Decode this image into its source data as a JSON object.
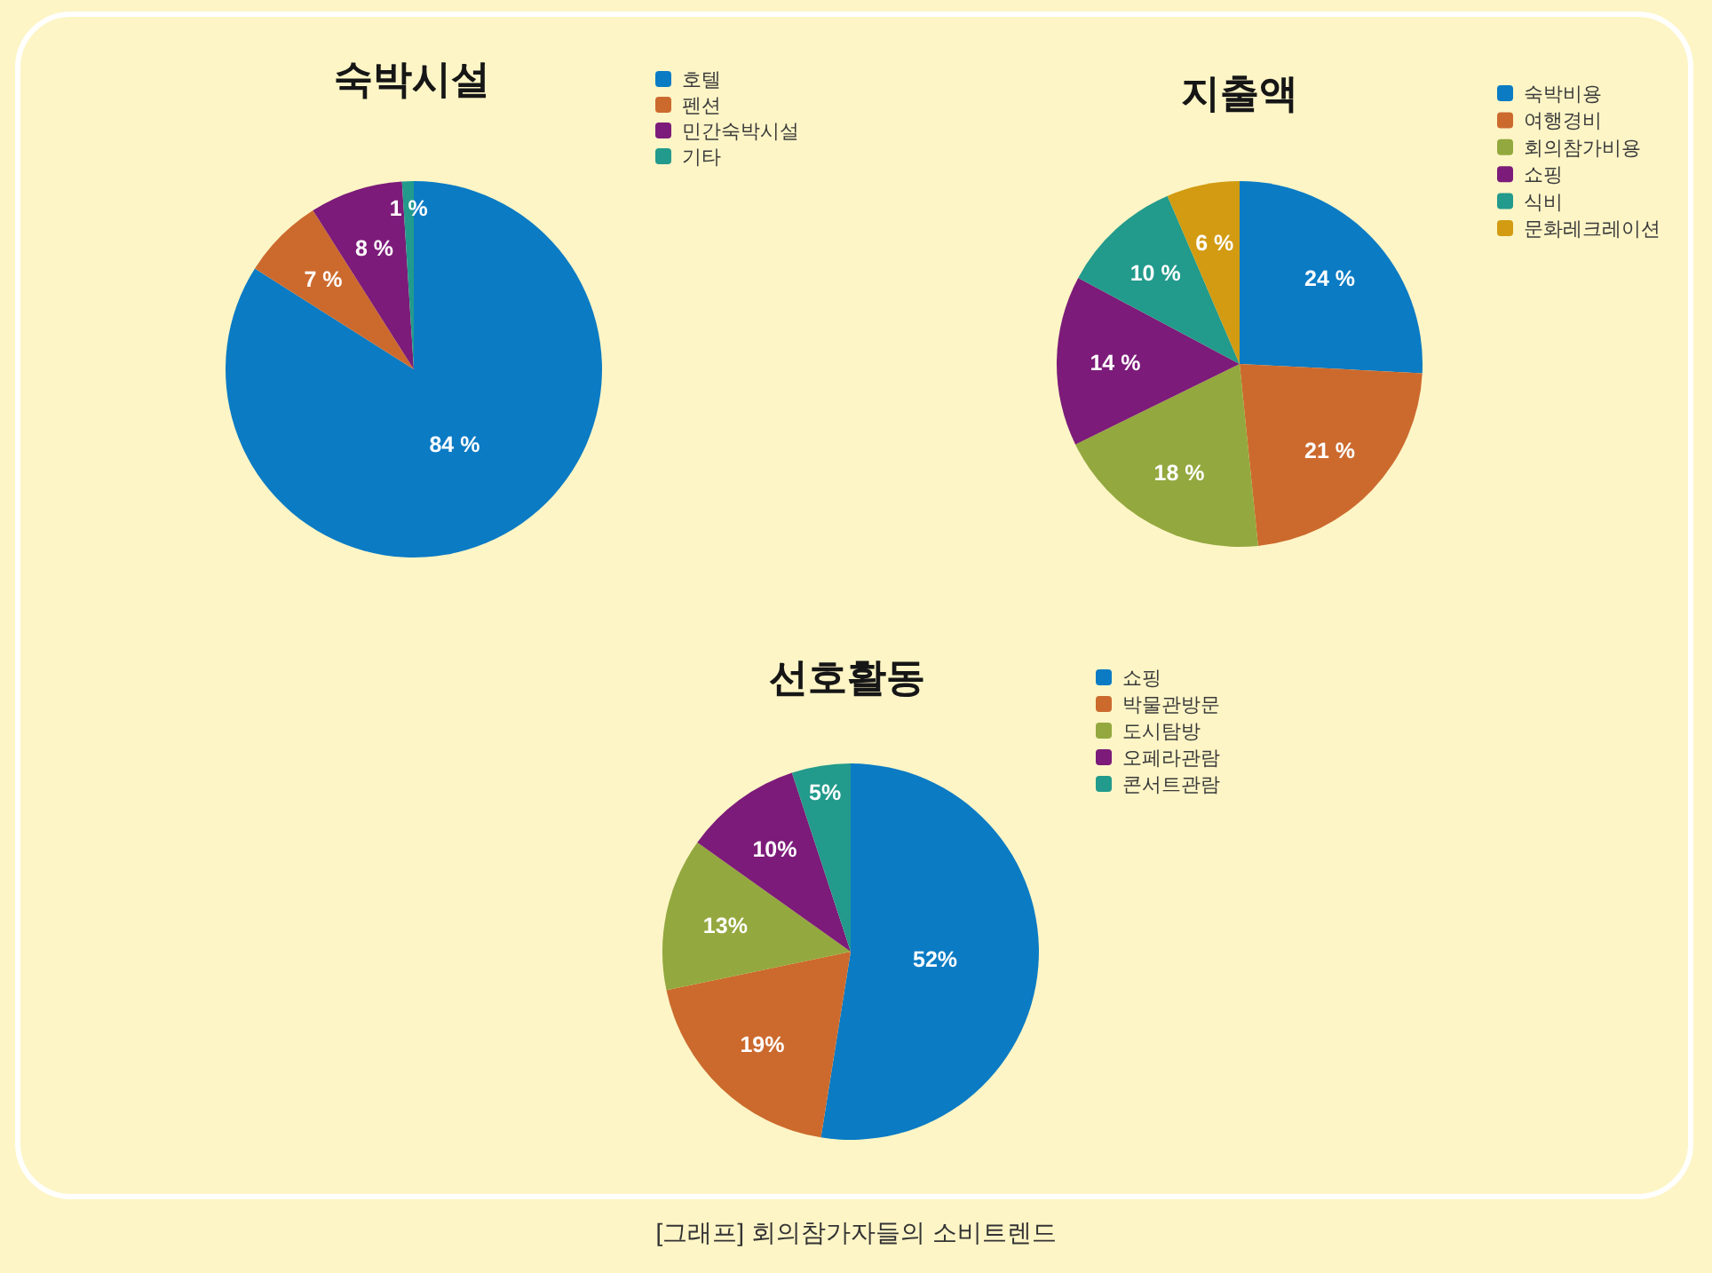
{
  "chart_data": [
    {
      "type": "pie",
      "title": "숙박시설",
      "categories": [
        "호텔",
        "펜션",
        "민간숙박시설",
        "기타"
      ],
      "values": [
        84,
        7,
        8,
        1
      ],
      "colors": [
        "#0b7bc4",
        "#cc6a2e",
        "#7c1b79",
        "#229a8c"
      ],
      "value_labels": [
        "84 %",
        "7 %",
        "8 %",
        "1 %"
      ],
      "legend": "top right"
    },
    {
      "type": "pie",
      "title": "지출액",
      "categories": [
        "숙박비용",
        "여행경비",
        "회의참가비용",
        "쇼핑",
        "식비",
        "문화레크레이션"
      ],
      "values": [
        24,
        21,
        18,
        14,
        10,
        6
      ],
      "colors": [
        "#0b7bc4",
        "#cc6a2e",
        "#93a83e",
        "#7c1b79",
        "#229a8c",
        "#d29b12"
      ],
      "value_labels": [
        "24 %",
        "21 %",
        "18 %",
        "14 %",
        "10 %",
        "6 %"
      ],
      "legend": "top right"
    },
    {
      "type": "pie",
      "title": "선호활동",
      "categories": [
        "쇼핑",
        "박물관방문",
        "도시탐방",
        "오페라관람",
        "콘서트관람"
      ],
      "values": [
        52,
        19,
        13,
        10,
        5
      ],
      "colors": [
        "#0b7bc4",
        "#cc6a2e",
        "#93a83e",
        "#7c1b79",
        "#229a8c"
      ],
      "value_labels": [
        "52%",
        "19%",
        "13%",
        "10%",
        "5%"
      ],
      "legend": "top right",
      "annotations": [
        "[그래프] 회의참가자들의 소비트렌드"
      ]
    }
  ]
}
